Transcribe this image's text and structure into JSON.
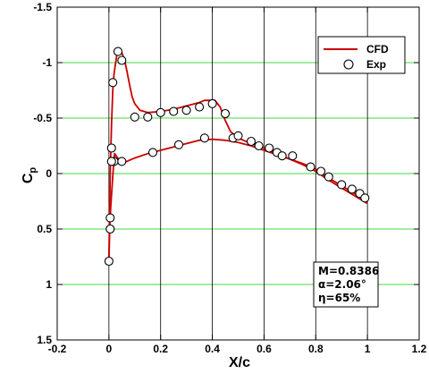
{
  "chart_data": {
    "type": "line",
    "title": "",
    "xlabel": "X/c",
    "ylabel": "Cp",
    "xlim": [
      -0.2,
      1.2
    ],
    "ylim": [
      -1.5,
      1.5
    ],
    "y_inverted": true,
    "x_ticks": [
      "-0.2",
      "0",
      "0.2",
      "0.4",
      "0.6",
      "0.8",
      "1",
      "1.2"
    ],
    "y_ticks": [
      "-1.5",
      "-1",
      "-0.5",
      "0",
      "0.5",
      "1",
      "1.5"
    ],
    "x_tick_values": [
      -0.2,
      0,
      0.2,
      0.4,
      0.6,
      0.8,
      1.0,
      1.2
    ],
    "y_tick_values": [
      -1.5,
      -1,
      -0.5,
      0,
      0.5,
      1,
      1.5
    ],
    "grid": true,
    "grid_colors": {
      "horizontal": "#00cc00",
      "vertical": "#000000"
    },
    "legend_position": "top-right",
    "legend": [
      {
        "label": "CFD",
        "marker": "line",
        "color": "#cc0000"
      },
      {
        "label": "Exp",
        "marker": "open-circle",
        "color": "#000000"
      }
    ],
    "annotation": {
      "lines": [
        "M=0.8386",
        "α=2.06°",
        "η=65%"
      ],
      "position": "bottom-right"
    },
    "series": [
      {
        "name": "CFD",
        "type": "line",
        "color": "#cc0000",
        "x": [
          1.0,
          0.95,
          0.9,
          0.85,
          0.8,
          0.75,
          0.7,
          0.65,
          0.6,
          0.55,
          0.5,
          0.47,
          0.45,
          0.43,
          0.41,
          0.39,
          0.37,
          0.35,
          0.3,
          0.25,
          0.2,
          0.15,
          0.12,
          0.1,
          0.09,
          0.08,
          0.07,
          0.06,
          0.05,
          0.04,
          0.03,
          0.02,
          0.015,
          0.01,
          0.005,
          0.0
        ],
        "y": [
          0.27,
          0.2,
          0.13,
          0.06,
          -0.02,
          -0.08,
          -0.13,
          -0.18,
          -0.23,
          -0.27,
          -0.32,
          -0.38,
          -0.48,
          -0.6,
          -0.66,
          -0.66,
          -0.66,
          -0.64,
          -0.61,
          -0.58,
          -0.56,
          -0.55,
          -0.57,
          -0.63,
          -0.69,
          -0.8,
          -0.92,
          -1.03,
          -1.09,
          -1.1,
          -1.06,
          -0.9,
          -0.75,
          -0.45,
          0.0,
          0.78
        ]
      },
      {
        "name": "CFD-lower",
        "type": "line",
        "color": "#cc0000",
        "x": [
          0.0,
          0.003,
          0.007,
          0.012,
          0.018,
          0.022,
          0.028,
          0.04,
          0.06,
          0.1,
          0.15,
          0.2,
          0.25,
          0.3,
          0.35,
          0.4,
          0.45,
          0.5,
          0.55,
          0.6,
          0.65,
          0.7,
          0.75,
          0.8,
          0.85,
          0.9,
          0.95,
          1.0
        ],
        "y": [
          0.78,
          0.5,
          0.3,
          0.13,
          -0.08,
          -0.18,
          -0.16,
          -0.12,
          -0.1,
          -0.14,
          -0.18,
          -0.21,
          -0.24,
          -0.27,
          -0.3,
          -0.31,
          -0.3,
          -0.28,
          -0.25,
          -0.21,
          -0.17,
          -0.13,
          -0.09,
          -0.04,
          0.04,
          0.11,
          0.18,
          0.25
        ]
      },
      {
        "name": "Exp",
        "type": "scatter",
        "marker": "open-circle",
        "color": "#000000",
        "x": [
          0.0,
          0.005,
          0.005,
          0.01,
          0.015,
          0.02,
          0.035,
          0.05,
          0.1,
          0.15,
          0.2,
          0.25,
          0.3,
          0.35,
          0.4,
          0.45,
          0.01,
          0.05,
          0.17,
          0.27,
          0.37,
          0.48,
          0.5,
          0.55,
          0.58,
          0.62,
          0.65,
          0.67,
          0.71,
          0.78,
          0.82,
          0.85,
          0.9,
          0.94,
          0.97,
          0.99
        ],
        "y": [
          0.79,
          0.5,
          0.4,
          -0.23,
          -0.82,
          -0.11,
          -1.1,
          -1.02,
          -0.51,
          -0.51,
          -0.55,
          -0.56,
          -0.57,
          -0.6,
          -0.63,
          -0.54,
          -0.11,
          -0.11,
          -0.19,
          -0.26,
          -0.32,
          -0.32,
          -0.34,
          -0.29,
          -0.25,
          -0.23,
          -0.19,
          -0.16,
          -0.16,
          -0.06,
          -0.02,
          0.03,
          0.1,
          0.14,
          0.18,
          0.22
        ]
      }
    ]
  }
}
